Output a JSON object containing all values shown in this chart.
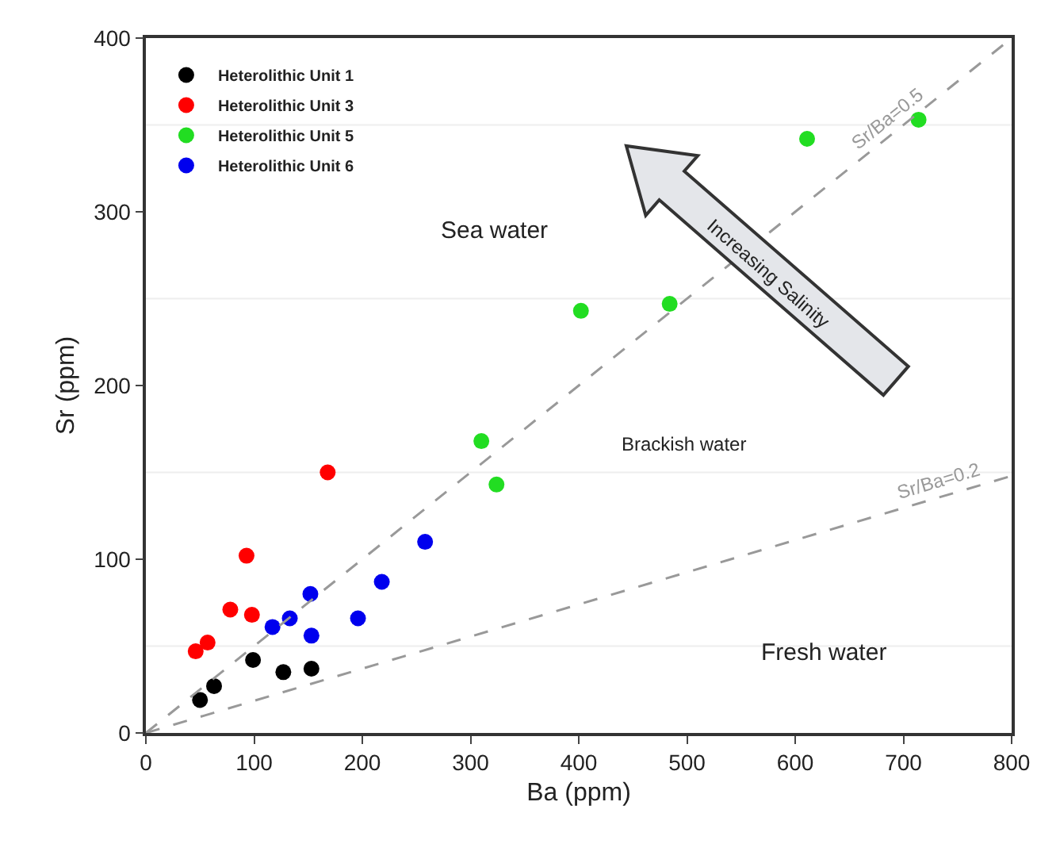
{
  "chart_data": {
    "type": "scatter",
    "xlabel": "Ba (ppm)",
    "ylabel": "Sr (ppm)",
    "xlim": [
      0,
      800
    ],
    "xticks": [
      0,
      100,
      200,
      300,
      400,
      500,
      600,
      700,
      800
    ],
    "ylim": [
      0,
      400
    ],
    "yticks": [
      0,
      100,
      200,
      300,
      400
    ],
    "grid": false,
    "legend": "top left",
    "marker": "circle",
    "series": [
      {
        "name": "Heterolithic Unit 1",
        "color": "#000000",
        "x": [
          50,
          63,
          99,
          127,
          153
        ],
        "values": [
          19,
          27,
          42,
          35,
          37
        ]
      },
      {
        "name": "Heterolithic Unit 3",
        "color": "#ff0000",
        "x": [
          46,
          57,
          78,
          93,
          98,
          168
        ],
        "values": [
          47,
          52,
          71,
          102,
          68,
          150
        ]
      },
      {
        "name": "Heterolithic Unit 5",
        "color": "#22dd22",
        "x": [
          310,
          324,
          402,
          484,
          611,
          714
        ],
        "values": [
          168,
          143,
          243,
          247,
          342,
          353
        ]
      },
      {
        "name": "Heterolithic Unit 6",
        "color": "#0000ee",
        "x": [
          117,
          133,
          152,
          153,
          196,
          218,
          258
        ],
        "values": [
          61,
          66,
          80,
          56,
          66,
          87,
          110
        ]
      },
      {
        "name": "Sr/Ba=0.5",
        "type": "line",
        "line_style": "dashed",
        "marker": "none",
        "color": "#999999",
        "x": [
          0,
          800
        ],
        "values": [
          0,
          400
        ]
      },
      {
        "name": "Sr/Ba=0.2",
        "type": "line",
        "line_style": "dashed",
        "marker": "none",
        "color": "#999999",
        "x": [
          0,
          800
        ],
        "values": [
          0,
          148
        ]
      }
    ],
    "ref_lines": [
      {
        "axis": "y",
        "value": 50,
        "color": "#eeeeee"
      },
      {
        "axis": "y",
        "value": 150,
        "color": "#eeeeee"
      },
      {
        "axis": "y",
        "value": 250,
        "color": "#eeeeee"
      },
      {
        "axis": "y",
        "value": 350,
        "color": "#eeeeee"
      }
    ],
    "annotations": [
      "Sea water",
      "Brackish water",
      "Fresh water",
      "Increasing Salinity"
    ]
  }
}
